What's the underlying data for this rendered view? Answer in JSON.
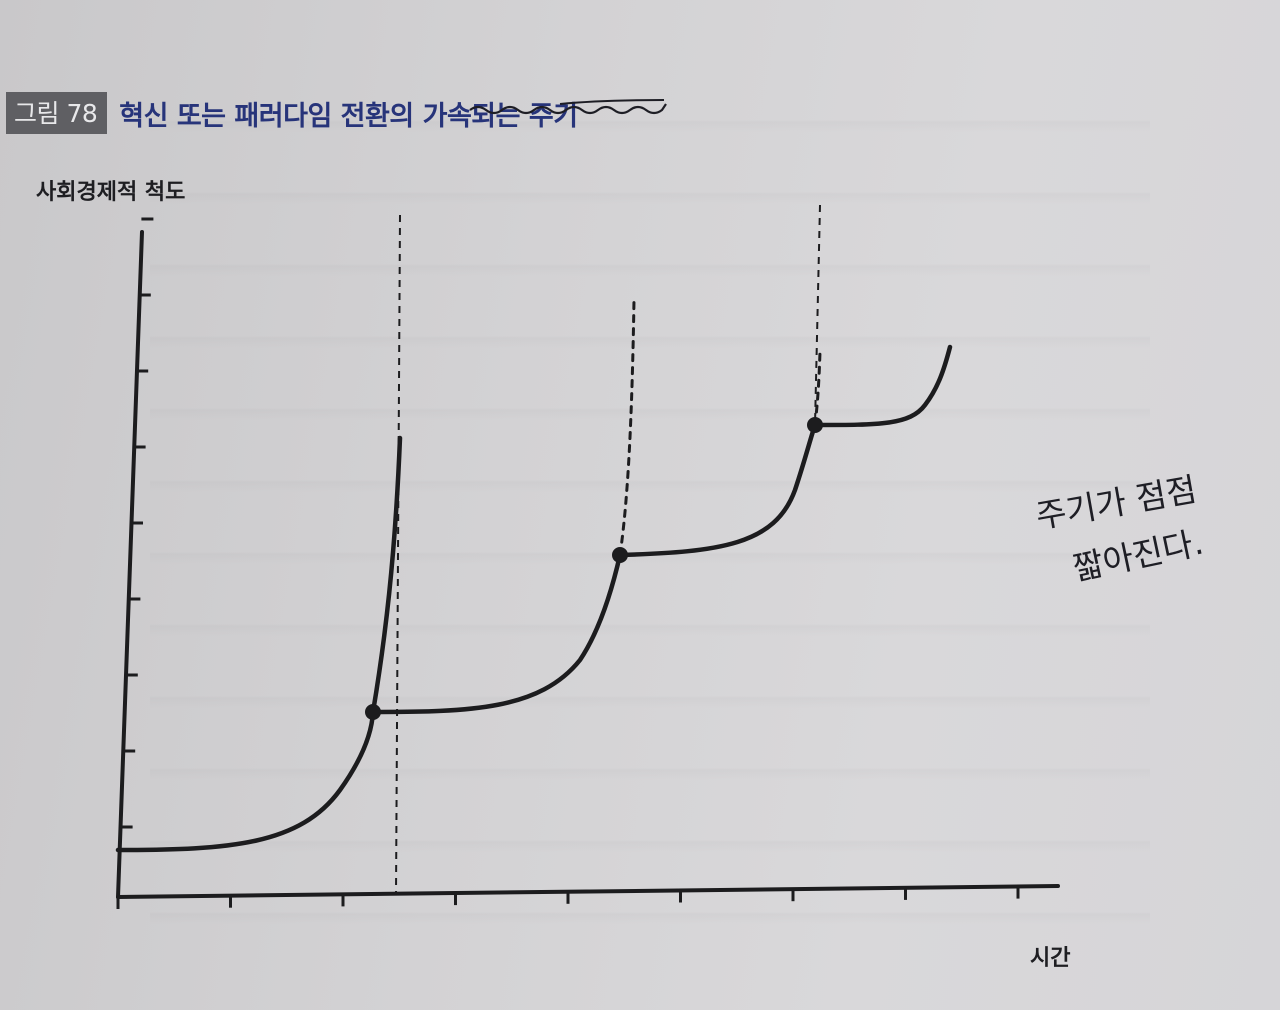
{
  "figure": {
    "label": "그림 78",
    "title": "혁신 또는 패러다임 전환의 가속되는 주기"
  },
  "handwritten_note": {
    "line1": "주기가 점점",
    "line2": "짧아진다."
  },
  "chart_data": {
    "type": "line",
    "ylabel": "사회경제적 척도",
    "xlabel": "시간",
    "x_ticks": 9,
    "y_ticks": 9,
    "grid": false,
    "cycles": [
      {
        "start": [
          0.0,
          0.6
        ],
        "dot": [
          2.3,
          2.4
        ],
        "end": [
          2.55,
          6.1
        ],
        "end_style": "solid",
        "dashed_line_x": 2.5
      },
      {
        "start": [
          2.3,
          2.4
        ],
        "dot": [
          4.5,
          4.6
        ],
        "end": [
          4.65,
          7.9
        ],
        "end_style": "dashed"
      },
      {
        "start": [
          4.5,
          4.6
        ],
        "dot": [
          6.3,
          6.35
        ],
        "end": [
          6.35,
          9.2
        ],
        "end_style": "dashed"
      },
      {
        "start": [
          6.3,
          6.35
        ],
        "end": [
          7.6,
          7.0
        ],
        "end_style": "solid"
      }
    ],
    "colors": {
      "line": "#1c1c1e",
      "title": "#27347a",
      "label_bg": "#5f5f63"
    }
  }
}
